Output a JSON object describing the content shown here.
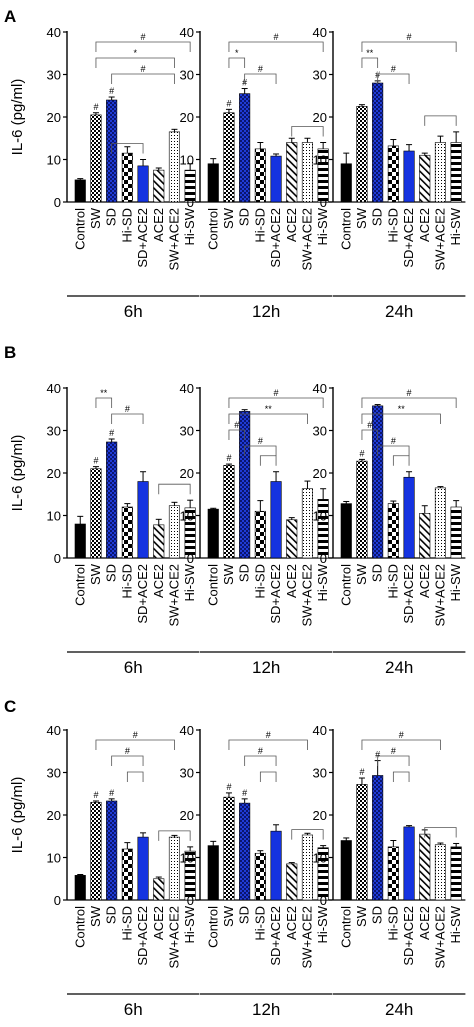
{
  "chart_data": [
    {
      "type": "bar",
      "panel_label": "A",
      "ylabel": "IL-6 (pg/ml)",
      "ylim": [
        0,
        40
      ],
      "yticks": [
        "0",
        "10",
        "20",
        "30",
        "40"
      ],
      "categories": [
        "Control",
        "SW",
        "SD",
        "Hi-SD",
        "SD+ACE2",
        "ACE2",
        "SW+ACE2",
        "Hi-SW"
      ],
      "groups": [
        {
          "name": "6h",
          "values": [
            5.2,
            20.5,
            24.0,
            11.5,
            8.5,
            7.5,
            16.5,
            7.5
          ],
          "errors": [
            0.3,
            0.5,
            0.7,
            1.5,
            1.5,
            0.5,
            0.6,
            1.5
          ],
          "marks": [
            "",
            "#",
            "#",
            "",
            "",
            "",
            "",
            ""
          ],
          "brackets": [
            {
              "from": 1,
              "to": 7,
              "label": "#"
            },
            {
              "from": 1,
              "to": 6,
              "label": "*"
            },
            {
              "from": 2,
              "to": 6,
              "label": "#"
            },
            {
              "from": 2,
              "to": 4,
              "label": ""
            }
          ]
        },
        {
          "name": "12h",
          "values": [
            9.0,
            21.0,
            25.5,
            12.5,
            10.8,
            14.0,
            14.0,
            12.5
          ],
          "errors": [
            1.2,
            0.8,
            1.2,
            1.5,
            0.5,
            1.0,
            1.0,
            1.5
          ],
          "marks": [
            "",
            "#",
            "#",
            "",
            "",
            "",
            "",
            ""
          ],
          "brackets": [
            {
              "from": 1,
              "to": 7,
              "label": "#"
            },
            {
              "from": 1,
              "to": 2,
              "label": "*"
            },
            {
              "from": 2,
              "to": 4,
              "label": "#"
            },
            {
              "from": 5,
              "to": 7,
              "label": ""
            }
          ]
        },
        {
          "name": "24h",
          "values": [
            9.0,
            22.5,
            28.0,
            13.2,
            12.0,
            11.0,
            14.0,
            14.0
          ],
          "errors": [
            2.5,
            0.4,
            0.5,
            1.5,
            1.5,
            0.5,
            1.5,
            2.5
          ],
          "marks": [
            "",
            "",
            "#",
            "",
            "",
            "",
            "",
            ""
          ],
          "brackets": [
            {
              "from": 1,
              "to": 7,
              "label": "#"
            },
            {
              "from": 1,
              "to": 2,
              "label": "**"
            },
            {
              "from": 2,
              "to": 4,
              "label": "#"
            },
            {
              "from": 5,
              "to": 7,
              "label": ""
            }
          ]
        }
      ]
    },
    {
      "type": "bar",
      "panel_label": "B",
      "ylabel": "IL-6 (pg/ml)",
      "ylim": [
        0,
        40
      ],
      "yticks": [
        "0",
        "10",
        "20",
        "30",
        "40"
      ],
      "categories": [
        "Control",
        "SW",
        "SD",
        "Hi-SD",
        "SD+ACE2",
        "ACE2",
        "SW+ACE2",
        "Hi-SW"
      ],
      "groups": [
        {
          "name": "6h",
          "values": [
            8.0,
            21.0,
            27.3,
            12.0,
            18.0,
            7.8,
            12.3,
            11.8
          ],
          "errors": [
            1.8,
            0.5,
            0.7,
            0.8,
            2.3,
            1.3,
            0.8,
            1.8
          ],
          "marks": [
            "",
            "#",
            "#",
            "",
            "",
            "",
            "",
            ""
          ],
          "brackets": [
            {
              "from": 1,
              "to": 2,
              "label": "**"
            },
            {
              "from": 2,
              "to": 4,
              "label": "#"
            },
            {
              "from": 5,
              "to": 7,
              "label": ""
            }
          ]
        },
        {
          "name": "12h",
          "values": [
            11.5,
            21.8,
            34.5,
            11.0,
            18.0,
            9.0,
            16.3,
            13.8
          ],
          "errors": [
            0.2,
            0.3,
            0.4,
            2.5,
            2.3,
            0.5,
            1.8,
            2.5
          ],
          "marks": [
            "",
            "#",
            "",
            "",
            "",
            "",
            "",
            ""
          ],
          "brackets": [
            {
              "from": 1,
              "to": 7,
              "label": "#"
            },
            {
              "from": 1,
              "to": 6,
              "label": "**"
            },
            {
              "from": 1,
              "to": 2,
              "label": "#"
            },
            {
              "from": 2,
              "to": 4,
              "label": "#"
            },
            {
              "from": 3,
              "to": 4,
              "label": ""
            }
          ]
        },
        {
          "name": "24h",
          "values": [
            12.8,
            22.8,
            35.8,
            12.8,
            19.0,
            10.5,
            16.5,
            12.0
          ],
          "errors": [
            0.5,
            0.4,
            0.3,
            0.6,
            1.3,
            1.8,
            0.3,
            1.5
          ],
          "marks": [
            "",
            "#",
            "",
            "",
            "",
            "",
            "",
            ""
          ],
          "brackets": [
            {
              "from": 1,
              "to": 7,
              "label": "#"
            },
            {
              "from": 1,
              "to": 6,
              "label": "**"
            },
            {
              "from": 1,
              "to": 2,
              "label": "#"
            },
            {
              "from": 2,
              "to": 4,
              "label": "#"
            },
            {
              "from": 3,
              "to": 4,
              "label": ""
            }
          ]
        }
      ]
    },
    {
      "type": "bar",
      "panel_label": "C",
      "ylabel": "IL-6 (pg/ml)",
      "ylim": [
        0,
        40
      ],
      "yticks": [
        "0",
        "10",
        "20",
        "30",
        "40"
      ],
      "categories": [
        "Control",
        "SW",
        "SD",
        "Hi-SD",
        "SD+ACE2",
        "ACE2",
        "SW+ACE2",
        "Hi-SW"
      ],
      "groups": [
        {
          "name": "6h",
          "values": [
            5.8,
            23.0,
            23.3,
            12.0,
            14.8,
            5.0,
            14.8,
            11.5
          ],
          "errors": [
            0.2,
            0.3,
            0.5,
            1.5,
            1.0,
            0.4,
            0.4,
            1.0
          ],
          "marks": [
            "",
            "#",
            "#",
            "",
            "",
            "",
            "",
            ""
          ],
          "brackets": [
            {
              "from": 1,
              "to": 6,
              "label": "#"
            },
            {
              "from": 2,
              "to": 4,
              "label": "#"
            },
            {
              "from": 3,
              "to": 4,
              "label": ""
            },
            {
              "from": 5,
              "to": 7,
              "label": ""
            }
          ]
        },
        {
          "name": "12h",
          "values": [
            12.8,
            24.2,
            22.8,
            11.0,
            16.2,
            8.5,
            15.3,
            12.3
          ],
          "errors": [
            1.0,
            1.0,
            1.0,
            0.6,
            1.5,
            0.3,
            0.4,
            0.5
          ],
          "marks": [
            "",
            "#",
            "#",
            "",
            "",
            "",
            "",
            ""
          ],
          "brackets": [
            {
              "from": 1,
              "to": 6,
              "label": "#"
            },
            {
              "from": 2,
              "to": 4,
              "label": "#"
            },
            {
              "from": 3,
              "to": 4,
              "label": ""
            },
            {
              "from": 5,
              "to": 7,
              "label": ""
            }
          ]
        },
        {
          "name": "24h",
          "values": [
            14.0,
            27.2,
            29.3,
            12.5,
            17.2,
            15.5,
            13.0,
            12.5
          ],
          "errors": [
            0.6,
            1.5,
            3.5,
            1.5,
            0.3,
            1.0,
            0.4,
            0.8
          ],
          "marks": [
            "",
            "#",
            "#",
            "",
            "",
            "",
            "",
            ""
          ],
          "brackets": [
            {
              "from": 1,
              "to": 6,
              "label": "#"
            },
            {
              "from": 2,
              "to": 4,
              "label": "#"
            },
            {
              "from": 3,
              "to": 4,
              "label": ""
            },
            {
              "from": 5,
              "to": 7,
              "label": ""
            }
          ]
        }
      ]
    }
  ]
}
